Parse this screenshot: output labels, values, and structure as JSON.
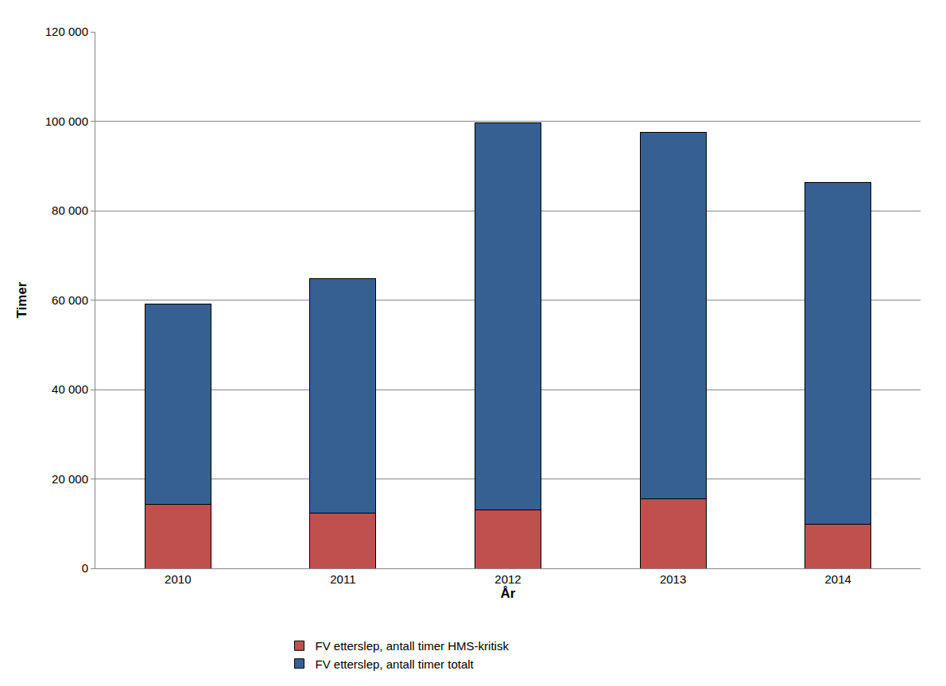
{
  "chart_data": {
    "type": "bar",
    "stacked": true,
    "x_label": "År",
    "y_label": "Timer",
    "categories": [
      "2010",
      "2011",
      "2012",
      "2013",
      "2014"
    ],
    "series": [
      {
        "name": "FV etterslep, antall timer HMS-kritisk",
        "color": "#c0504d",
        "values": [
          14300,
          12300,
          13100,
          15600,
          9900
        ]
      },
      {
        "name": "FV etterslep, antall timer totalt",
        "color": "#376092",
        "values": [
          44900,
          52500,
          86600,
          81900,
          76500
        ]
      }
    ],
    "ylim": [
      0,
      120000
    ],
    "yticks": [
      0,
      {
        "value": 20000,
        "label": "20 000"
      },
      {
        "value": 40000,
        "label": "40 000"
      },
      {
        "value": 60000,
        "label": "60 000"
      },
      {
        "value": 80000,
        "label": "80 000"
      },
      {
        "value": 100000,
        "label": "100 000"
      },
      {
        "value": 120000,
        "label": "120 000"
      }
    ],
    "grid": true,
    "legend": "bottom"
  }
}
